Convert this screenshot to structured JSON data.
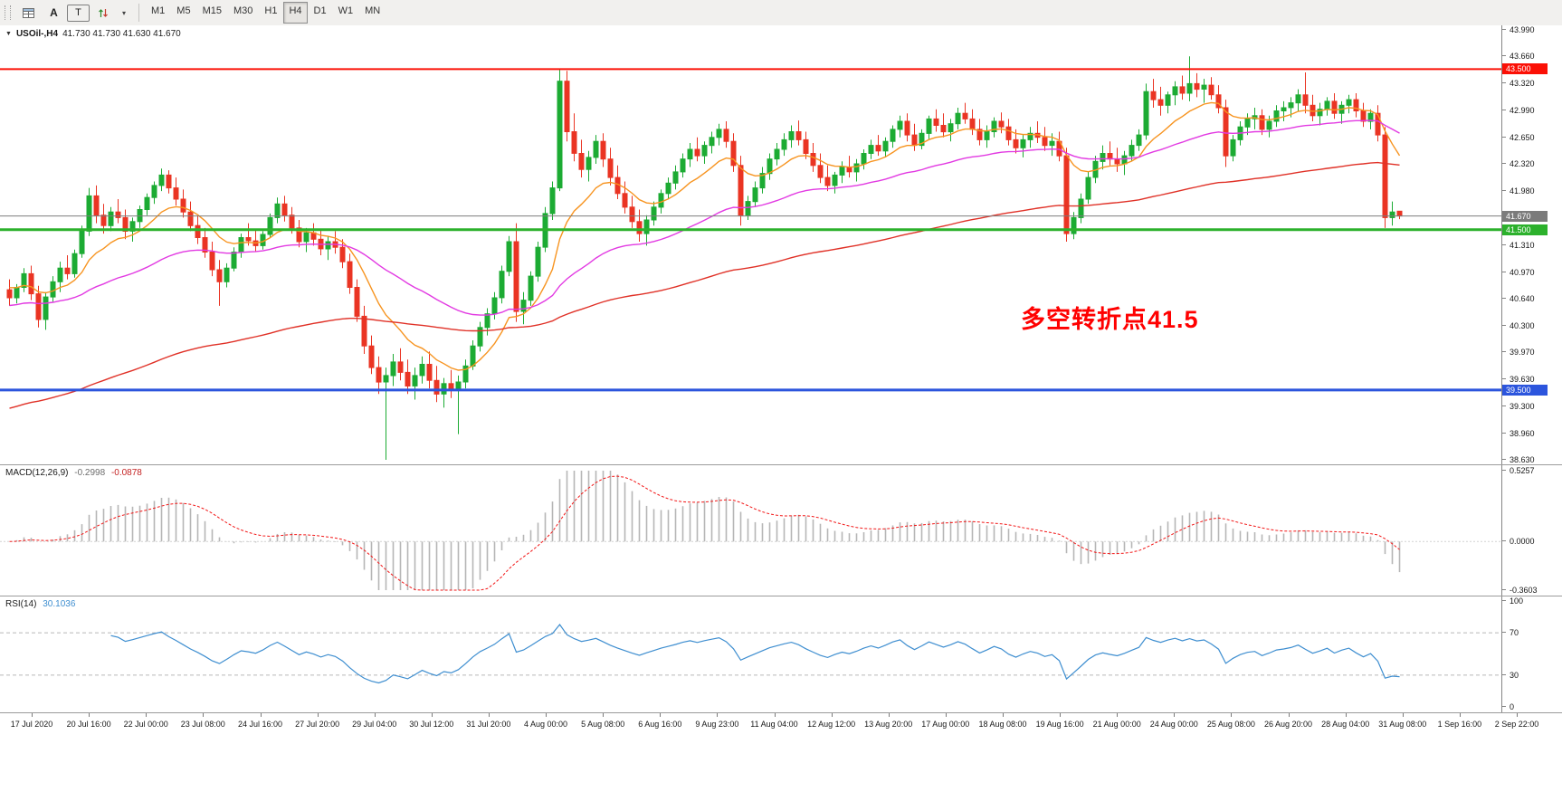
{
  "toolbar": {
    "tool_a": "A",
    "tool_t": "T",
    "timeframes": [
      "M1",
      "M5",
      "M15",
      "M30",
      "H1",
      "H4",
      "D1",
      "W1",
      "MN"
    ],
    "active_timeframe": "H4"
  },
  "chart": {
    "title": "USOil-,H4",
    "ohlc": "41.730 41.730 41.630 41.670",
    "price_ticks": [
      "43.990",
      "43.660",
      "43.320",
      "42.990",
      "42.650",
      "42.320",
      "41.980",
      "41.310",
      "40.970",
      "40.640",
      "40.300",
      "39.970",
      "39.630",
      "39.300",
      "38.960",
      "38.630"
    ]
  },
  "chart_data": {
    "type": "candlestick",
    "symbol": "USOil-",
    "timeframe": "H4",
    "price_range": [
      38.63,
      43.99
    ],
    "colors": {
      "bull": "#1cab33",
      "bear": "#ea3423"
    },
    "hlines": [
      {
        "price": 43.5,
        "label": "43.500",
        "color": "#fb1006",
        "width": 2
      },
      {
        "price": 41.67,
        "label": "41.670",
        "color": "#7b7b7b",
        "width": 1
      },
      {
        "price": 41.5,
        "label": "41.500",
        "color": "#2cb12c",
        "width": 3
      },
      {
        "price": 39.5,
        "label": "39.500",
        "color": "#2c55dd",
        "width": 3
      }
    ],
    "annotation": {
      "text": "多空转折点41.5",
      "color": "#ff0000",
      "candle_index": 140,
      "price": 40.42
    },
    "moving_averages": [
      {
        "name": "fast-ma",
        "color": "#f79420",
        "alpha": 0.16,
        "seed": 40.8
      },
      {
        "name": "medium-ma",
        "color": "#e23ae2",
        "alpha": 0.045,
        "seed": 40.55
      },
      {
        "name": "slow-ma",
        "color": "#e03127",
        "alpha": 0.016,
        "seed": 39.25
      }
    ],
    "macd": {
      "label": "MACD(12,26,9)",
      "value_main": "-0.2998",
      "value_signal": "-0.0878",
      "range": [
        -0.3603,
        0.5257
      ],
      "ticks": [
        "0.5257",
        "0.0000",
        "-0.3603"
      ],
      "histogram_color": "#b6b6b6",
      "signal_color": "#f21616"
    },
    "rsi": {
      "label": "RSI(14)",
      "value": "30.1036",
      "range": [
        0,
        100
      ],
      "levels": [
        70,
        30
      ],
      "ticks": [
        "100",
        "70",
        "30",
        "0"
      ],
      "line_color": "#3e8ed0"
    },
    "x_labels": [
      "17 Jul 2020",
      "20 Jul 16:00",
      "22 Jul 00:00",
      "23 Jul 08:00",
      "24 Jul 16:00",
      "27 Jul 20:00",
      "29 Jul 04:00",
      "30 Jul 12:00",
      "31 Jul 20:00",
      "4 Aug 00:00",
      "5 Aug 08:00",
      "6 Aug 16:00",
      "9 Aug 23:00",
      "11 Aug 04:00",
      "12 Aug 12:00",
      "13 Aug 20:00",
      "17 Aug 00:00",
      "18 Aug 08:00",
      "19 Aug 16:00",
      "21 Aug 00:00",
      "24 Aug 00:00",
      "25 Aug 08:00",
      "26 Aug 20:00",
      "28 Aug 04:00",
      "31 Aug 08:00",
      "1 Sep 16:00",
      "2 Sep 22:00"
    ],
    "candles": [
      [
        40.75,
        40.88,
        40.55,
        40.65
      ],
      [
        40.65,
        40.82,
        40.58,
        40.78
      ],
      [
        40.78,
        41.02,
        40.72,
        40.95
      ],
      [
        40.95,
        41.05,
        40.62,
        40.7
      ],
      [
        40.7,
        40.8,
        40.28,
        40.38
      ],
      [
        40.38,
        40.72,
        40.25,
        40.66
      ],
      [
        40.66,
        40.92,
        40.6,
        40.85
      ],
      [
        40.85,
        41.1,
        40.72,
        41.02
      ],
      [
        41.02,
        41.18,
        40.88,
        40.95
      ],
      [
        40.95,
        41.25,
        40.9,
        41.2
      ],
      [
        41.2,
        41.55,
        41.15,
        41.48
      ],
      [
        41.48,
        42.02,
        41.42,
        41.92
      ],
      [
        41.92,
        42.05,
        41.58,
        41.68
      ],
      [
        41.68,
        41.82,
        41.45,
        41.55
      ],
      [
        41.55,
        41.78,
        41.48,
        41.72
      ],
      [
        41.72,
        41.88,
        41.58,
        41.65
      ],
      [
        41.65,
        41.75,
        41.38,
        41.48
      ],
      [
        41.48,
        41.65,
        41.35,
        41.6
      ],
      [
        41.6,
        41.8,
        41.52,
        41.75
      ],
      [
        41.75,
        41.95,
        41.68,
        41.9
      ],
      [
        41.9,
        42.1,
        41.82,
        42.05
      ],
      [
        42.05,
        42.26,
        41.98,
        42.18
      ],
      [
        42.18,
        42.24,
        41.95,
        42.02
      ],
      [
        42.02,
        42.15,
        41.8,
        41.88
      ],
      [
        41.88,
        42.0,
        41.65,
        41.72
      ],
      [
        41.72,
        41.85,
        41.48,
        41.55
      ],
      [
        41.55,
        41.68,
        41.32,
        41.4
      ],
      [
        41.4,
        41.52,
        41.15,
        41.22
      ],
      [
        41.22,
        41.35,
        40.92,
        41.0
      ],
      [
        41.0,
        41.12,
        40.55,
        40.85
      ],
      [
        40.85,
        41.08,
        40.78,
        41.02
      ],
      [
        41.02,
        41.28,
        40.98,
        41.22
      ],
      [
        41.22,
        41.45,
        41.15,
        41.4
      ],
      [
        41.4,
        41.58,
        41.3,
        41.36
      ],
      [
        41.36,
        41.5,
        41.22,
        41.3
      ],
      [
        41.3,
        41.48,
        41.25,
        41.44
      ],
      [
        41.44,
        41.7,
        41.4,
        41.65
      ],
      [
        41.65,
        41.9,
        41.58,
        41.82
      ],
      [
        41.82,
        41.92,
        41.6,
        41.68
      ],
      [
        41.68,
        41.78,
        41.45,
        41.52
      ],
      [
        41.52,
        41.62,
        41.28,
        41.35
      ],
      [
        41.35,
        41.52,
        41.22,
        41.46
      ],
      [
        41.46,
        41.58,
        41.3,
        41.38
      ],
      [
        41.38,
        41.5,
        41.18,
        41.26
      ],
      [
        41.26,
        41.42,
        41.12,
        41.35
      ],
      [
        41.35,
        41.48,
        41.2,
        41.28
      ],
      [
        41.28,
        41.38,
        41.02,
        41.1
      ],
      [
        41.1,
        41.2,
        40.7,
        40.78
      ],
      [
        40.78,
        40.88,
        40.35,
        40.42
      ],
      [
        40.42,
        40.55,
        39.95,
        40.05
      ],
      [
        40.05,
        40.18,
        39.7,
        39.78
      ],
      [
        39.78,
        39.92,
        39.45,
        39.6
      ],
      [
        39.6,
        39.78,
        38.63,
        39.68
      ],
      [
        39.68,
        39.95,
        39.55,
        39.85
      ],
      [
        39.85,
        40.02,
        39.62,
        39.72
      ],
      [
        39.72,
        39.88,
        39.45,
        39.55
      ],
      [
        39.55,
        39.78,
        39.38,
        39.68
      ],
      [
        39.68,
        39.92,
        39.58,
        39.82
      ],
      [
        39.82,
        39.98,
        39.52,
        39.62
      ],
      [
        39.62,
        39.8,
        39.35,
        39.45
      ],
      [
        39.45,
        39.65,
        39.28,
        39.58
      ],
      [
        39.58,
        39.75,
        39.4,
        39.5
      ],
      [
        39.5,
        39.68,
        38.95,
        39.6
      ],
      [
        39.6,
        39.88,
        39.52,
        39.8
      ],
      [
        39.8,
        40.12,
        39.75,
        40.05
      ],
      [
        40.05,
        40.35,
        39.98,
        40.28
      ],
      [
        40.28,
        40.52,
        40.18,
        40.45
      ],
      [
        40.45,
        40.72,
        40.38,
        40.65
      ],
      [
        40.65,
        41.05,
        40.58,
        40.98
      ],
      [
        40.98,
        41.42,
        40.92,
        41.35
      ],
      [
        41.35,
        41.58,
        40.35,
        40.48
      ],
      [
        40.48,
        40.72,
        40.32,
        40.62
      ],
      [
        40.62,
        40.98,
        40.55,
        40.92
      ],
      [
        40.92,
        41.35,
        40.85,
        41.28
      ],
      [
        41.28,
        41.78,
        41.22,
        41.7
      ],
      [
        41.7,
        42.1,
        41.62,
        42.02
      ],
      [
        42.02,
        43.5,
        41.98,
        43.35
      ],
      [
        43.35,
        43.48,
        42.6,
        42.72
      ],
      [
        42.72,
        42.95,
        42.35,
        42.45
      ],
      [
        42.45,
        42.62,
        42.15,
        42.25
      ],
      [
        42.25,
        42.48,
        42.1,
        42.4
      ],
      [
        42.4,
        42.68,
        42.32,
        42.6
      ],
      [
        42.6,
        42.7,
        42.28,
        42.38
      ],
      [
        42.38,
        42.52,
        42.05,
        42.15
      ],
      [
        42.15,
        42.3,
        41.88,
        41.95
      ],
      [
        41.95,
        42.1,
        41.7,
        41.78
      ],
      [
        41.78,
        41.92,
        41.52,
        41.6
      ],
      [
        41.6,
        41.75,
        41.35,
        41.45
      ],
      [
        41.45,
        41.68,
        41.3,
        41.62
      ],
      [
        41.62,
        41.85,
        41.55,
        41.78
      ],
      [
        41.78,
        42.0,
        41.7,
        41.95
      ],
      [
        41.95,
        42.15,
        41.88,
        42.08
      ],
      [
        42.08,
        42.3,
        42.0,
        42.22
      ],
      [
        42.22,
        42.45,
        42.15,
        42.38
      ],
      [
        42.38,
        42.58,
        42.28,
        42.5
      ],
      [
        42.5,
        42.65,
        42.35,
        42.42
      ],
      [
        42.42,
        42.6,
        42.32,
        42.55
      ],
      [
        42.55,
        42.72,
        42.45,
        42.65
      ],
      [
        42.65,
        42.82,
        42.55,
        42.75
      ],
      [
        42.75,
        42.85,
        42.52,
        42.6
      ],
      [
        42.6,
        42.7,
        42.22,
        42.3
      ],
      [
        42.3,
        42.42,
        41.55,
        41.68
      ],
      [
        41.68,
        41.92,
        41.62,
        41.85
      ],
      [
        41.85,
        42.1,
        41.78,
        42.02
      ],
      [
        42.02,
        42.28,
        41.95,
        42.2
      ],
      [
        42.2,
        42.45,
        42.12,
        42.38
      ],
      [
        42.38,
        42.58,
        42.3,
        42.5
      ],
      [
        42.5,
        42.7,
        42.42,
        42.62
      ],
      [
        42.62,
        42.8,
        42.52,
        42.72
      ],
      [
        42.72,
        42.86,
        42.55,
        42.62
      ],
      [
        42.62,
        42.72,
        42.38,
        42.45
      ],
      [
        42.45,
        42.58,
        42.22,
        42.3
      ],
      [
        42.3,
        42.45,
        42.08,
        42.15
      ],
      [
        42.15,
        42.3,
        41.98,
        42.05
      ],
      [
        42.05,
        42.22,
        41.95,
        42.18
      ],
      [
        42.18,
        42.35,
        42.08,
        42.28
      ],
      [
        42.28,
        42.42,
        42.15,
        42.22
      ],
      [
        42.22,
        42.38,
        42.1,
        42.32
      ],
      [
        42.32,
        42.5,
        42.25,
        42.45
      ],
      [
        42.45,
        42.62,
        42.38,
        42.55
      ],
      [
        42.55,
        42.68,
        42.42,
        42.48
      ],
      [
        42.48,
        42.65,
        42.4,
        42.6
      ],
      [
        42.6,
        42.8,
        42.52,
        42.75
      ],
      [
        42.75,
        42.92,
        42.65,
        42.85
      ],
      [
        42.85,
        42.95,
        42.6,
        42.68
      ],
      [
        42.68,
        42.82,
        42.48,
        42.55
      ],
      [
        42.55,
        42.75,
        42.5,
        42.7
      ],
      [
        42.7,
        42.92,
        42.62,
        42.88
      ],
      [
        42.88,
        43.0,
        42.72,
        42.8
      ],
      [
        42.8,
        42.95,
        42.65,
        42.72
      ],
      [
        42.72,
        42.88,
        42.6,
        42.82
      ],
      [
        42.82,
        43.02,
        42.75,
        42.95
      ],
      [
        42.95,
        43.08,
        42.82,
        42.88
      ],
      [
        42.88,
        43.0,
        42.68,
        42.75
      ],
      [
        42.75,
        42.88,
        42.55,
        42.62
      ],
      [
        42.62,
        42.8,
        42.52,
        42.72
      ],
      [
        42.72,
        42.9,
        42.65,
        42.85
      ],
      [
        42.85,
        42.96,
        42.7,
        42.78
      ],
      [
        42.78,
        42.88,
        42.55,
        42.62
      ],
      [
        42.62,
        42.75,
        42.45,
        42.52
      ],
      [
        42.52,
        42.68,
        42.4,
        42.62
      ],
      [
        42.62,
        42.78,
        42.52,
        42.7
      ],
      [
        42.7,
        42.85,
        42.58,
        42.65
      ],
      [
        42.65,
        42.78,
        42.48,
        42.55
      ],
      [
        42.55,
        42.7,
        42.42,
        42.6
      ],
      [
        42.6,
        42.72,
        42.35,
        42.42
      ],
      [
        42.42,
        42.52,
        41.35,
        41.45
      ],
      [
        41.45,
        41.72,
        41.38,
        41.65
      ],
      [
        41.65,
        41.95,
        41.58,
        41.88
      ],
      [
        41.88,
        42.22,
        41.82,
        42.15
      ],
      [
        42.15,
        42.42,
        42.08,
        42.35
      ],
      [
        42.35,
        42.55,
        42.25,
        42.45
      ],
      [
        42.45,
        42.6,
        42.3,
        42.38
      ],
      [
        42.38,
        42.52,
        42.22,
        42.32
      ],
      [
        42.32,
        42.48,
        42.18,
        42.42
      ],
      [
        42.42,
        42.62,
        42.35,
        42.55
      ],
      [
        42.55,
        42.75,
        42.48,
        42.68
      ],
      [
        42.68,
        43.32,
        42.62,
        43.22
      ],
      [
        43.22,
        43.38,
        43.02,
        43.12
      ],
      [
        43.12,
        43.28,
        42.92,
        43.05
      ],
      [
        43.05,
        43.22,
        42.95,
        43.18
      ],
      [
        43.18,
        43.35,
        43.05,
        43.28
      ],
      [
        43.28,
        43.42,
        43.12,
        43.2
      ],
      [
        43.2,
        43.66,
        43.1,
        43.32
      ],
      [
        43.32,
        43.45,
        43.15,
        43.25
      ],
      [
        43.25,
        43.38,
        43.08,
        43.3
      ],
      [
        43.3,
        43.4,
        43.12,
        43.18
      ],
      [
        43.18,
        43.3,
        42.95,
        43.02
      ],
      [
        43.02,
        43.12,
        42.28,
        42.42
      ],
      [
        42.42,
        42.68,
        42.35,
        42.62
      ],
      [
        42.62,
        42.85,
        42.55,
        42.78
      ],
      [
        42.78,
        42.95,
        42.68,
        42.88
      ],
      [
        42.88,
        43.02,
        42.75,
        42.92
      ],
      [
        42.92,
        43.0,
        42.68,
        42.75
      ],
      [
        42.75,
        42.92,
        42.65,
        42.85
      ],
      [
        42.85,
        43.05,
        42.78,
        42.98
      ],
      [
        42.98,
        43.1,
        42.85,
        43.02
      ],
      [
        43.02,
        43.15,
        42.9,
        43.08
      ],
      [
        43.08,
        43.25,
        42.98,
        43.18
      ],
      [
        43.18,
        43.46,
        42.95,
        43.05
      ],
      [
        43.05,
        43.18,
        42.85,
        42.92
      ],
      [
        42.92,
        43.08,
        42.8,
        43.0
      ],
      [
        43.0,
        43.15,
        42.92,
        43.1
      ],
      [
        43.1,
        43.2,
        42.88,
        42.95
      ],
      [
        42.95,
        43.1,
        42.82,
        43.05
      ],
      [
        43.05,
        43.18,
        42.95,
        43.12
      ],
      [
        43.12,
        43.2,
        42.9,
        42.98
      ],
      [
        42.98,
        43.08,
        42.78,
        42.85
      ],
      [
        42.85,
        43.0,
        42.75,
        42.95
      ],
      [
        42.95,
        43.05,
        42.6,
        42.68
      ],
      [
        42.68,
        42.78,
        41.52,
        41.65
      ],
      [
        41.65,
        41.85,
        41.55,
        41.72
      ],
      [
        41.73,
        41.73,
        41.63,
        41.67
      ]
    ]
  }
}
